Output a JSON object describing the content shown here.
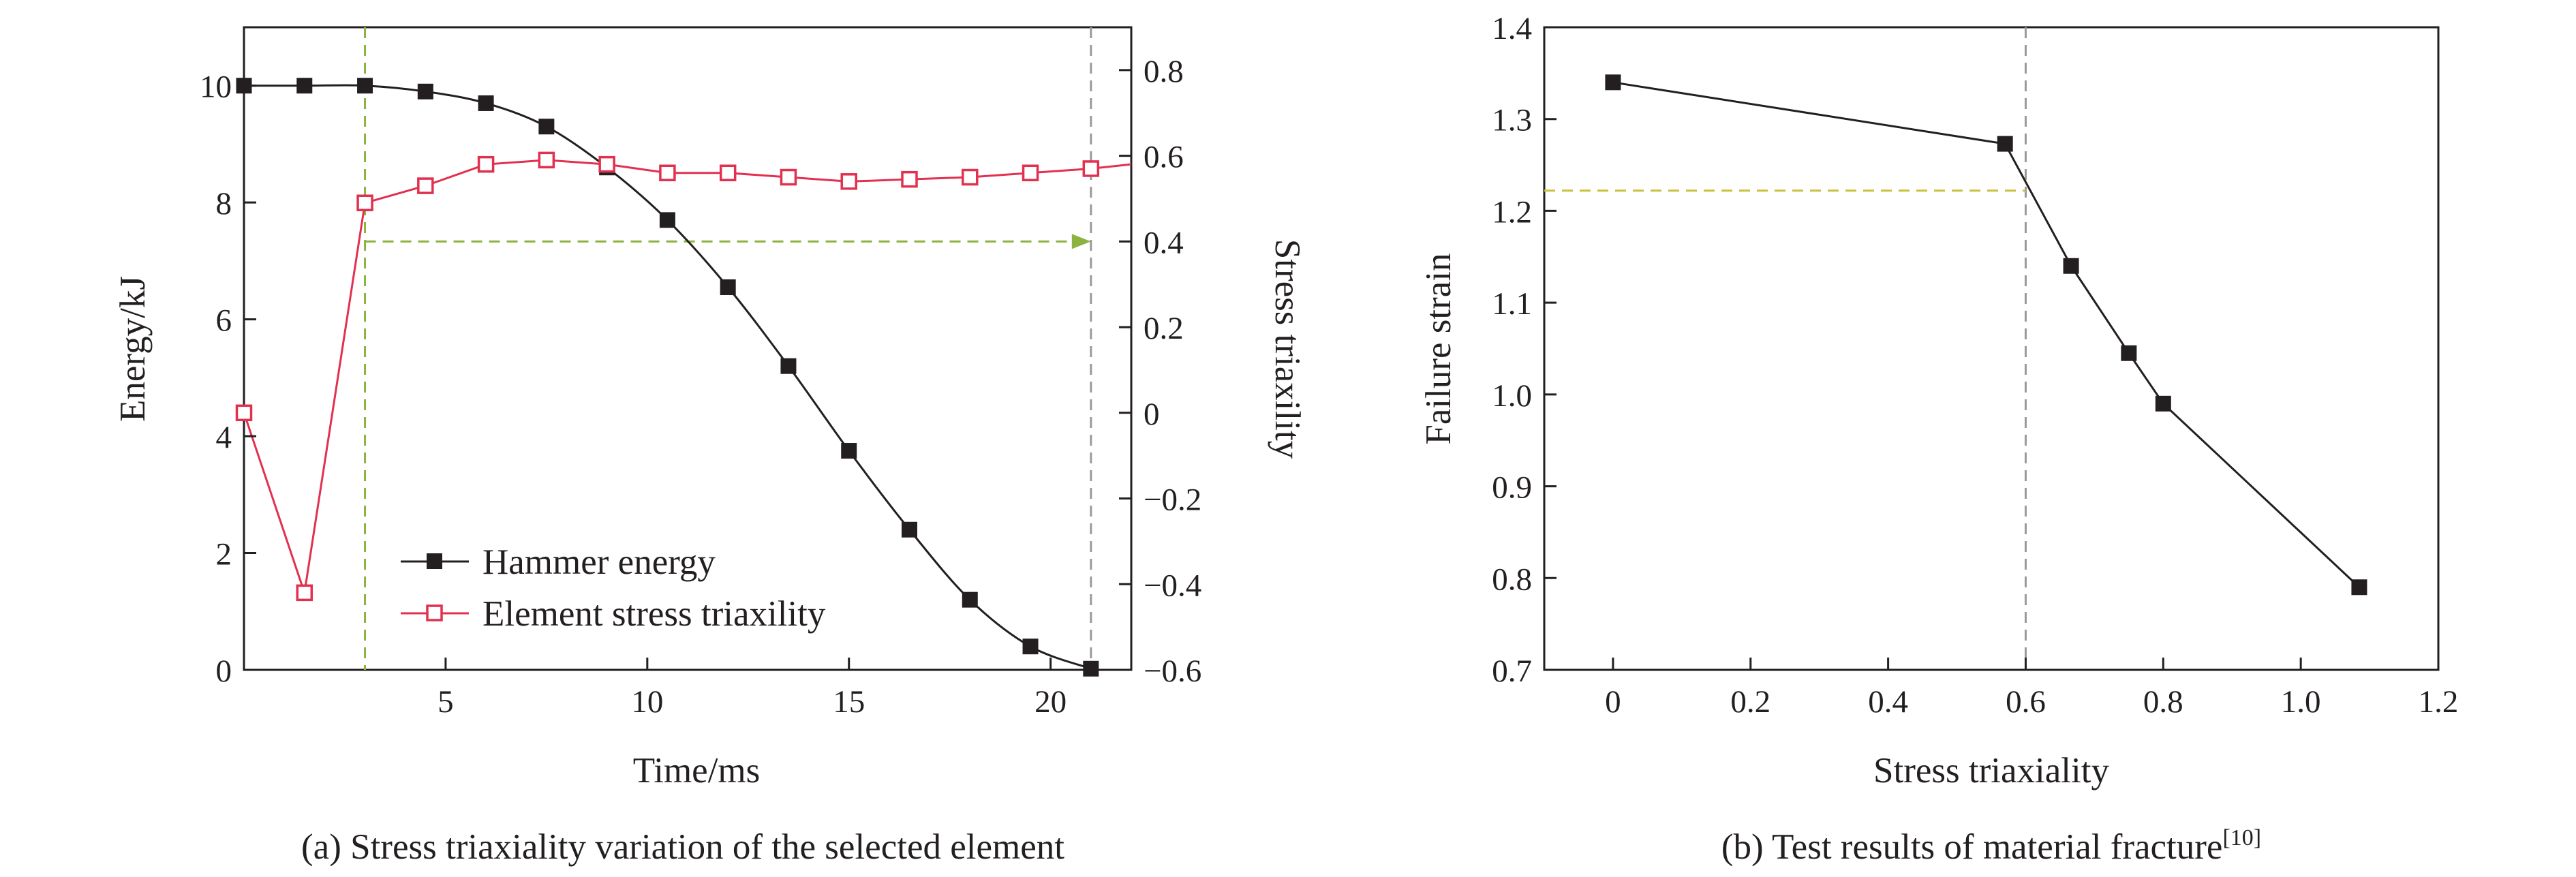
{
  "chart_data": [
    {
      "type": "line",
      "panel": "a",
      "caption": "(a) Stress triaxiality variation of the selected element",
      "xlabel": "Time/ms",
      "ylabel": "Energy/kJ",
      "y2label": "Stress triaxility",
      "xlim": [
        0,
        22
      ],
      "ylim": [
        0,
        11
      ],
      "y2lim": [
        -0.6,
        0.9
      ],
      "xticks": [
        5,
        10,
        15,
        20
      ],
      "yticks": [
        0,
        2,
        4,
        6,
        8,
        10
      ],
      "y2ticks": [
        -0.6,
        -0.4,
        -0.2,
        0,
        0.2,
        0.4,
        0.6,
        0.8
      ],
      "xtick_labels": [
        "5",
        "10",
        "15",
        "20"
      ],
      "ytick_labels": [
        "0",
        "2",
        "4",
        "6",
        "8",
        "10"
      ],
      "y2tick_labels": [
        "−0.6",
        "−0.4",
        "−0.2",
        "0",
        "0.2",
        "0.4",
        "0.6",
        "0.8"
      ],
      "legend_position": "bottom-left",
      "series": [
        {
          "name": "Hammer energy",
          "axis": "left",
          "color": "#231f20",
          "marker": "filled-square",
          "x": [
            0,
            1.5,
            3,
            4.5,
            6,
            7.5,
            9,
            10.5,
            12,
            13.5,
            15,
            16.5,
            18,
            19.5,
            21
          ],
          "values": [
            10,
            10,
            10,
            9.9,
            9.7,
            9.3,
            8.6,
            7.7,
            6.55,
            5.2,
            3.75,
            2.4,
            1.2,
            0.4,
            0.02
          ]
        },
        {
          "name": "Element stress triaxility",
          "axis": "right",
          "color": "#e2304f",
          "marker": "open-square",
          "x": [
            0,
            1.5,
            3,
            4.5,
            6,
            7.5,
            9,
            10.5,
            12,
            13.5,
            15,
            16.5,
            18,
            19.5,
            21
          ],
          "values": [
            0.0,
            -0.42,
            0.49,
            0.53,
            0.58,
            0.59,
            0.58,
            0.56,
            0.56,
            0.55,
            0.54,
            0.545,
            0.55,
            0.56,
            0.57
          ],
          "tail": {
            "x": 22,
            "y": 0.58
          }
        }
      ],
      "annotations": [
        {
          "type": "vline",
          "x": 3,
          "color": "#8db33f",
          "style": "dashed"
        },
        {
          "type": "vline",
          "x": 21,
          "color": "#9a9a9a",
          "style": "dashed"
        },
        {
          "type": "arrow",
          "from": [
            3,
            0.4
          ],
          "to": [
            21,
            0.4
          ],
          "axis": "right",
          "color": "#8db33f",
          "style": "dashed"
        }
      ]
    },
    {
      "type": "line",
      "panel": "b",
      "caption": "(b) Test results of material fracture",
      "caption_sup": "[10]",
      "xlabel": "Stress triaxiality",
      "ylabel": "Failure strain",
      "xlim": [
        -0.1,
        1.2
      ],
      "ylim": [
        0.7,
        1.4
      ],
      "xticks": [
        0,
        0.2,
        0.4,
        0.6,
        0.8,
        1.0,
        1.2
      ],
      "yticks": [
        0.7,
        0.8,
        0.9,
        1.0,
        1.1,
        1.2,
        1.3,
        1.4
      ],
      "xtick_labels": [
        "0",
        "0.2",
        "0.4",
        "0.6",
        "0.8",
        "1.0",
        "1.2"
      ],
      "ytick_labels": [
        "0.7",
        "0.8",
        "0.9",
        "1.0",
        "1.1",
        "1.2",
        "1.3",
        "1.4"
      ],
      "series": [
        {
          "name": "Failure strain",
          "color": "#231f20",
          "marker": "filled-square",
          "x": [
            0,
            0.57,
            0.666,
            0.75,
            0.8,
            1.085
          ],
          "values": [
            1.34,
            1.273,
            1.14,
            1.045,
            0.99,
            0.79
          ]
        }
      ],
      "annotations": [
        {
          "type": "vline",
          "x": 0.6,
          "y_to": 1.222,
          "color": "#9a9a9a",
          "style": "dashed"
        },
        {
          "type": "hline",
          "y": 1.222,
          "x_to": 0.6,
          "color": "#c9c03e",
          "style": "dashed"
        }
      ]
    }
  ]
}
